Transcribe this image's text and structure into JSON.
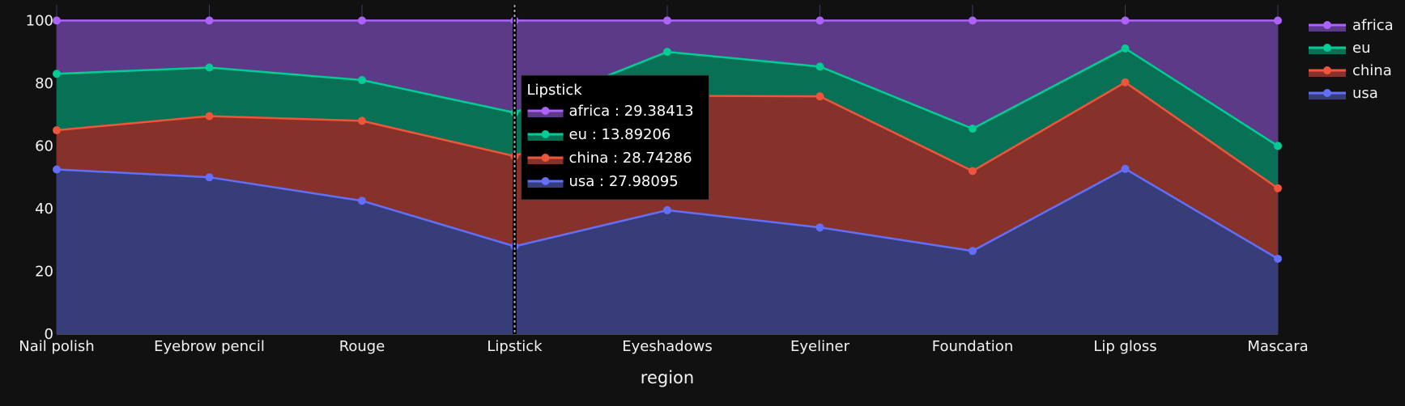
{
  "chart_data": {
    "type": "area",
    "stacked": true,
    "normalized": "percent",
    "categories": [
      "Nail polish",
      "Eyebrow pencil",
      "Rouge",
      "Lipstick",
      "Eyeshadows",
      "Eyeliner",
      "Foundation",
      "Lip gloss",
      "Mascara"
    ],
    "xlabel": "region",
    "ylabel": "",
    "ylim": [
      0,
      105
    ],
    "yticks": [
      "0",
      "20",
      "40",
      "60",
      "80",
      "100"
    ],
    "grid": true,
    "legend_position": "top-right",
    "series": [
      {
        "name": "usa",
        "color": "#636efa",
        "fill": "#373d78",
        "values": [
          52.5,
          50.0,
          42.5,
          27.98095,
          39.5,
          34.0,
          26.5,
          52.7,
          24.0
        ]
      },
      {
        "name": "china",
        "color": "#ef553b",
        "fill": "#86322a",
        "values": [
          12.5,
          19.5,
          25.5,
          28.74286,
          36.5,
          41.8,
          25.5,
          27.6,
          22.5
        ]
      },
      {
        "name": "eu",
        "color": "#00cc96",
        "fill": "#077055",
        "values": [
          18.0,
          15.5,
          13.0,
          13.89206,
          14.0,
          9.5,
          13.5,
          10.8,
          13.5
        ]
      },
      {
        "name": "africa",
        "color": "#ab63fa",
        "fill": "#5d3a88",
        "values": [
          17.0,
          15.0,
          19.0,
          29.38413,
          10.0,
          14.7,
          34.5,
          8.9,
          40.0
        ]
      }
    ],
    "legend_order": [
      "africa",
      "eu",
      "china",
      "usa"
    ],
    "hover": {
      "category": "Lipstick",
      "title": "Lipstick",
      "rows": [
        {
          "series": "africa",
          "text": "africa : 29.38413"
        },
        {
          "series": "eu",
          "text": "eu : 13.89206"
        },
        {
          "series": "china",
          "text": "china : 28.74286"
        },
        {
          "series": "usa",
          "text": "usa : 27.98095"
        }
      ]
    }
  }
}
